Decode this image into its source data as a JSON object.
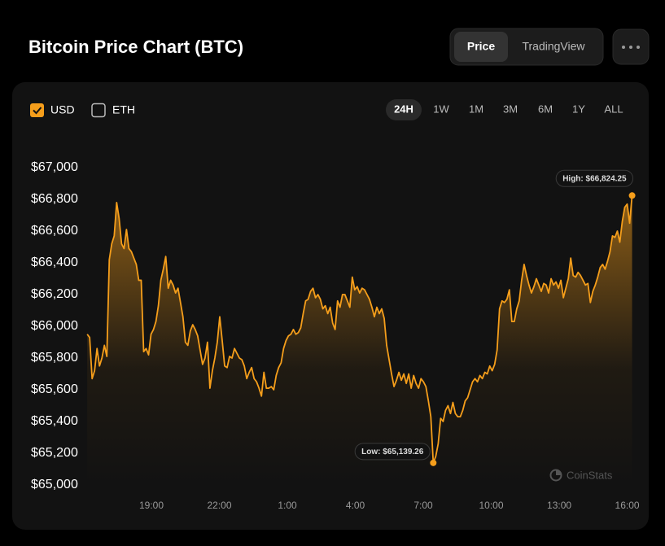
{
  "header": {
    "title": "Bitcoin Price Chart (BTC)",
    "tabs": [
      "Price",
      "TradingView"
    ]
  },
  "controls": {
    "currencies": [
      "USD",
      "ETH"
    ],
    "ranges": [
      "24H",
      "1W",
      "1M",
      "3M",
      "6M",
      "1Y",
      "ALL"
    ]
  },
  "watermark": "CoinStats",
  "chart_data": {
    "type": "line",
    "color": "#f59e1b",
    "high_label": "High: $66,824.25",
    "low_label": "Low: $65,139.26",
    "xlim": [
      0,
      1455
    ],
    "ylim": [
      65000,
      67000
    ],
    "xticks": [
      {
        "value": 180,
        "label": "19:00"
      },
      {
        "value": 360,
        "label": "22:00"
      },
      {
        "value": 540,
        "label": "1:00"
      },
      {
        "value": 720,
        "label": "4:00"
      },
      {
        "value": 900,
        "label": "7:00"
      },
      {
        "value": 1080,
        "label": "10:00"
      },
      {
        "value": 1260,
        "label": "13:00"
      },
      {
        "value": 1440,
        "label": "16:00"
      }
    ],
    "yticks": [
      {
        "value": 65000,
        "label": "$65,000"
      },
      {
        "value": 65200,
        "label": "$65,200"
      },
      {
        "value": 65400,
        "label": "$65,400"
      },
      {
        "value": 65600,
        "label": "$65,600"
      },
      {
        "value": 65800,
        "label": "$65,800"
      },
      {
        "value": 66000,
        "label": "$66,000"
      },
      {
        "value": 66200,
        "label": "$66,200"
      },
      {
        "value": 66400,
        "label": "$66,400"
      },
      {
        "value": 66600,
        "label": "$66,600"
      },
      {
        "value": 66800,
        "label": "$66,800"
      },
      {
        "value": 67000,
        "label": "$67,000"
      }
    ],
    "x": [
      10,
      16.5,
      23,
      29.5,
      36,
      42.5,
      49,
      55.5,
      62,
      68.5,
      75,
      81.5,
      88,
      94.5,
      101,
      107.5,
      114,
      120.5,
      127,
      133.5,
      140,
      146.5,
      153,
      159.5,
      166,
      172.5,
      179,
      185.5,
      192,
      198.5,
      205,
      211.5,
      218,
      224.5,
      231,
      237.5,
      244,
      250.5,
      257,
      263.5,
      270,
      276.5,
      283,
      289.5,
      296,
      302.5,
      309,
      315.5,
      322,
      328.5,
      335,
      341.5,
      348,
      354.5,
      361,
      367.5,
      374,
      380.5,
      387,
      393.5,
      400,
      406.5,
      413,
      419.5,
      426,
      432.5,
      439,
      445.5,
      452,
      458.5,
      465,
      471.5,
      478,
      484.5,
      491,
      497.5,
      504,
      510.5,
      517,
      523.5,
      530,
      536.5,
      543,
      549.5,
      556,
      562.5,
      569,
      575.5,
      582,
      588.5,
      595,
      601.5,
      608,
      614.5,
      621,
      627.5,
      634,
      640.5,
      647,
      653.5,
      660,
      666.5,
      673,
      679.5,
      686,
      692.5,
      699,
      705.5,
      712,
      718.5,
      725,
      731.5,
      738,
      744.5,
      751,
      757.5,
      764,
      770.5,
      777,
      783.5,
      790,
      796.5,
      803,
      809.5,
      816,
      822.5,
      829,
      835.5,
      842,
      848.5,
      855,
      861.5,
      868,
      874.5,
      881,
      887.5,
      894,
      900.5,
      907,
      913.5,
      920,
      926.5,
      933,
      939.5,
      946,
      952.5,
      959,
      965.5,
      972,
      978.5,
      985,
      991.5,
      998,
      1004.5,
      1011,
      1017.5,
      1024,
      1030.5,
      1037,
      1043.5,
      1050,
      1056.5,
      1063,
      1069.5,
      1076,
      1082.5,
      1089,
      1095.5,
      1102,
      1108.5,
      1115,
      1121.5,
      1128,
      1134.5,
      1141,
      1147.5,
      1154,
      1160.5,
      1167,
      1173.5,
      1180,
      1186.5,
      1193,
      1199.5,
      1206,
      1212.5,
      1219,
      1225.5,
      1232,
      1238.5,
      1245,
      1251.5,
      1258,
      1264.5,
      1271,
      1277.5,
      1284,
      1290.5,
      1297,
      1303.5,
      1310,
      1316.5,
      1323,
      1329.5,
      1336,
      1342.5,
      1349,
      1355.5,
      1362,
      1368.5,
      1375,
      1381.5,
      1388,
      1394.5,
      1401,
      1407.5,
      1414,
      1420.5,
      1427,
      1433.5,
      1440,
      1446.5,
      1453
    ],
    "values": [
      65950,
      65930,
      65670,
      65720,
      65860,
      65750,
      65800,
      65880,
      65810,
      66420,
      66520,
      66570,
      66780,
      66680,
      66520,
      66490,
      66610,
      66490,
      66470,
      66430,
      66390,
      66290,
      66290,
      65840,
      65860,
      65820,
      65950,
      65980,
      66030,
      66130,
      66290,
      66360,
      66440,
      66240,
      66290,
      66260,
      66210,
      66240,
      66150,
      66060,
      65900,
      65880,
      65970,
      66010,
      65980,
      65940,
      65850,
      65760,
      65800,
      65900,
      65610,
      65720,
      65800,
      65900,
      66060,
      65910,
      65750,
      65740,
      65810,
      65800,
      65860,
      65830,
      65800,
      65790,
      65750,
      65670,
      65710,
      65740,
      65670,
      65650,
      65610,
      65560,
      65710,
      65610,
      65610,
      65620,
      65600,
      65690,
      65740,
      65770,
      65860,
      65910,
      65940,
      65950,
      65980,
      65950,
      65960,
      65990,
      66080,
      66160,
      66170,
      66220,
      66240,
      66180,
      66200,
      66170,
      66110,
      66130,
      66080,
      66120,
      66020,
      65980,
      66160,
      66120,
      66200,
      66200,
      66160,
      66120,
      66310,
      66230,
      66250,
      66210,
      66240,
      66230,
      66200,
      66170,
      66120,
      66060,
      66120,
      66080,
      66110,
      66050,
      65880,
      65790,
      65700,
      65620,
      65660,
      65710,
      65660,
      65700,
      65640,
      65700,
      65610,
      65690,
      65640,
      65610,
      65670,
      65650,
      65620,
      65530,
      65430,
      65139.26,
      65180,
      65260,
      65420,
      65400,
      65470,
      65500,
      65450,
      65520,
      65450,
      65430,
      65430,
      65470,
      65530,
      65550,
      65600,
      65650,
      65670,
      65650,
      65690,
      65670,
      65710,
      65700,
      65750,
      65720,
      65760,
      65850,
      66110,
      66160,
      66150,
      66170,
      66230,
      66030,
      66030,
      66110,
      66160,
      66290,
      66390,
      66320,
      66260,
      66210,
      66250,
      66300,
      66260,
      66220,
      66270,
      66260,
      66210,
      66300,
      66260,
      66280,
      66240,
      66290,
      66180,
      66240,
      66300,
      66430,
      66320,
      66310,
      66340,
      66320,
      66290,
      66260,
      66270,
      66150,
      66220,
      66260,
      66310,
      66370,
      66390,
      66360,
      66410,
      66470,
      66570,
      66560,
      66600,
      66530,
      66660,
      66750,
      66770,
      66650,
      66824.25
    ]
  }
}
